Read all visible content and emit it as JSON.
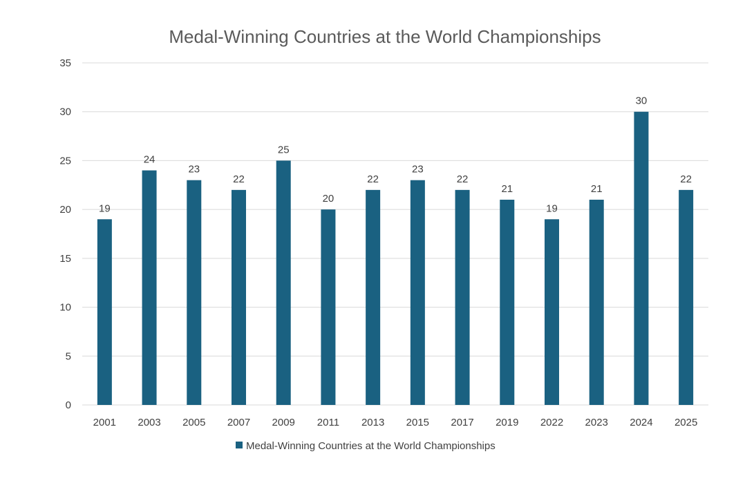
{
  "chart_data": {
    "type": "bar",
    "title": "Medal-Winning Countries at the World Championships",
    "categories": [
      "2001",
      "2003",
      "2005",
      "2007",
      "2009",
      "2011",
      "2013",
      "2015",
      "2017",
      "2019",
      "2022",
      "2023",
      "2024",
      "2025"
    ],
    "series": [
      {
        "name": "Medal-Winning Countries at the World Championships",
        "values": [
          19,
          24,
          23,
          22,
          25,
          20,
          22,
          23,
          22,
          21,
          19,
          21,
          30,
          22
        ],
        "color": "#1a6181"
      }
    ],
    "ylim": [
      0,
      35
    ],
    "yticks": [
      0,
      5,
      10,
      15,
      20,
      25,
      30,
      35
    ],
    "xlabel": "",
    "ylabel": "",
    "grid": true,
    "legend_position": "bottom",
    "data_labels": true
  }
}
